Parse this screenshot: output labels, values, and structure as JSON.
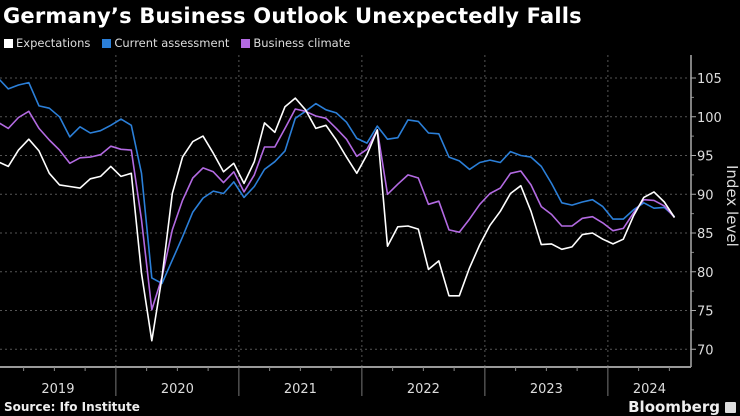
{
  "chart_data": {
    "type": "line",
    "title": "Germany’s Business Outlook Unexpectedly Falls",
    "ylabel": "Index level",
    "xlabel": "",
    "x_start": "2019-01",
    "x_end": "2024-07",
    "frequency": "monthly",
    "x_tick_labels": [
      "2019",
      "2020",
      "2021",
      "2022",
      "2023",
      "2024"
    ],
    "ylim": [
      70,
      107
    ],
    "y_ticks": [
      70,
      75,
      80,
      85,
      90,
      95,
      100,
      105
    ],
    "grid": true,
    "legend_position": "top-left",
    "y_axis_side": "right",
    "series": [
      {
        "name": "Expectations",
        "color": "#ffffff",
        "values": [
          94.2,
          93.6,
          95.7,
          97.1,
          95.6,
          92.7,
          91.2,
          91.0,
          90.8,
          92.0,
          92.3,
          93.6,
          92.3,
          92.7,
          79.8,
          71.1,
          79.3,
          90.1,
          94.8,
          96.8,
          97.5,
          95.3,
          92.9,
          94.0,
          91.4,
          94.2,
          99.2,
          98.0,
          101.3,
          102.4,
          100.9,
          98.5,
          98.9,
          97.0,
          94.8,
          92.7,
          95.1,
          98.3,
          83.3,
          85.8,
          85.9,
          85.5,
          80.3,
          81.4,
          76.9,
          76.9,
          80.5,
          83.5,
          86.0,
          87.8,
          90.1,
          91.1,
          87.8,
          83.5,
          83.6,
          82.9,
          83.2,
          84.8,
          85.0,
          84.2,
          83.6,
          84.2,
          87.2,
          89.6,
          90.3,
          89.0,
          87.0
        ]
      },
      {
        "name": "Current assessment",
        "color": "#2b7fd8",
        "values": [
          105.0,
          103.6,
          104.1,
          104.4,
          101.4,
          101.1,
          100.0,
          97.4,
          98.7,
          97.9,
          98.2,
          98.9,
          99.7,
          98.9,
          92.7,
          79.2,
          78.5,
          81.5,
          84.5,
          87.7,
          89.5,
          90.4,
          90.1,
          91.6,
          89.6,
          91.0,
          93.2,
          94.2,
          95.6,
          99.8,
          100.7,
          101.7,
          100.9,
          100.5,
          99.3,
          97.2,
          96.6,
          98.8,
          97.1,
          97.3,
          99.6,
          99.4,
          97.9,
          97.8,
          94.8,
          94.3,
          93.2,
          94.1,
          94.4,
          94.1,
          95.5,
          95.0,
          94.8,
          93.6,
          91.4,
          88.9,
          88.6,
          89.0,
          89.3,
          88.4,
          86.8,
          86.8,
          88.0,
          88.9,
          88.2,
          88.3,
          87.1
        ]
      },
      {
        "name": "Business climate",
        "color": "#b36ae2",
        "values": [
          99.3,
          98.5,
          99.9,
          100.7,
          98.5,
          97.0,
          95.7,
          94.0,
          94.7,
          94.8,
          95.1,
          96.2,
          95.8,
          95.7,
          86.7,
          75.1,
          79.3,
          85.4,
          89.2,
          92.1,
          93.4,
          92.9,
          91.5,
          92.9,
          90.3,
          92.5,
          96.1,
          96.1,
          98.5,
          101.0,
          100.7,
          100.1,
          99.8,
          98.5,
          97.1,
          94.9,
          95.8,
          98.3,
          90.0,
          91.3,
          92.5,
          92.1,
          88.7,
          89.1,
          85.4,
          85.1,
          86.8,
          88.7,
          90.1,
          90.8,
          92.7,
          93.0,
          91.2,
          88.4,
          87.4,
          85.9,
          85.9,
          86.9,
          87.1,
          86.3,
          85.3,
          85.6,
          87.6,
          89.3,
          89.2,
          88.5,
          87.0
        ]
      }
    ]
  },
  "footer": {
    "source": "Source: Ifo Institute",
    "brand": "Bloomberg"
  }
}
